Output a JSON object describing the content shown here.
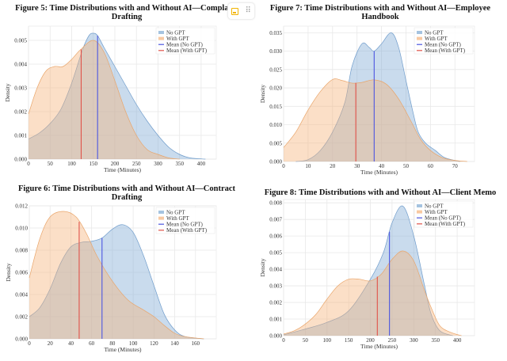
{
  "colors": {
    "no_gpt_fill": "#7fa9d3",
    "with_gpt_fill": "#f5b27a",
    "mean_no_gpt": "#4b55e0",
    "mean_with_gpt": "#e0524a",
    "grid": "#e8e8e8"
  },
  "toolbar": {
    "icons": [
      "image-icon",
      "drag-handle-icon"
    ]
  },
  "chart_data": [
    {
      "type": "area",
      "title": "Figure 5: Time Distributions with and Without AI—Complaint Drafting",
      "title_lines": [
        "Figure 5: Time Distributions with and Without AI—Complaint",
        "Drafting"
      ],
      "xlabel": "Time (Minutes)",
      "ylabel": "Density",
      "xlim": [
        0,
        435
      ],
      "ylim": [
        0,
        0.0056
      ],
      "xticks": [
        0,
        50,
        100,
        150,
        200,
        250,
        300,
        350,
        400
      ],
      "yticks": [
        0.0,
        0.001,
        0.002,
        0.003,
        0.004,
        0.005
      ],
      "grid": true,
      "legend_placement": "top-right",
      "legend": [
        "No GPT",
        "With GPT",
        "Mean (No GPT)",
        "Mean (With GPT)"
      ],
      "series": [
        {
          "name": "No GPT",
          "x": [
            0,
            25,
            50,
            75,
            100,
            125,
            140,
            150,
            160,
            175,
            200,
            225,
            250,
            275,
            300,
            325,
            350,
            375,
            410
          ],
          "y": [
            0.00085,
            0.0011,
            0.0015,
            0.0021,
            0.0032,
            0.0046,
            0.0052,
            0.0053,
            0.0052,
            0.0047,
            0.0039,
            0.0031,
            0.0023,
            0.0016,
            0.001,
            0.0005,
            0.0002,
            5e-05,
            0
          ]
        },
        {
          "name": "With GPT",
          "x": [
            0,
            20,
            40,
            60,
            80,
            100,
            120,
            150,
            175,
            200,
            225,
            250,
            275,
            300,
            325,
            350
          ],
          "y": [
            0.0019,
            0.003,
            0.0037,
            0.0039,
            0.0039,
            0.0042,
            0.0046,
            0.005,
            0.0045,
            0.0033,
            0.002,
            0.001,
            0.0004,
            0.0002,
            5e-05,
            0
          ]
        }
      ],
      "means": {
        "No GPT": 160,
        "With GPT": 122
      }
    },
    {
      "type": "area",
      "title": "Figure 7: Time Distributions with and Without AI—Employee Handbook",
      "title_lines": [
        "Figure 7: Time Distributions with and Without AI—Employee",
        "Handbook"
      ],
      "xlabel": "Time (Minutes)",
      "ylabel": "Density",
      "xlim": [
        0,
        78
      ],
      "ylim": [
        0,
        0.0368
      ],
      "xticks": [
        0,
        10,
        20,
        30,
        40,
        50,
        60,
        70
      ],
      "yticks": [
        0.0,
        0.005,
        0.01,
        0.015,
        0.02,
        0.025,
        0.03,
        0.035
      ],
      "grid": true,
      "legend_placement": "top-right",
      "legend": [
        "No GPT",
        "With GPT",
        "Mean (No GPT)",
        "Mean (With GPT)"
      ],
      "series": [
        {
          "name": "No GPT",
          "x": [
            5,
            10,
            15,
            20,
            25,
            28,
            32,
            35,
            37,
            40,
            44,
            47,
            50,
            53,
            55,
            58,
            62,
            66,
            72
          ],
          "y": [
            0,
            0.0005,
            0.003,
            0.008,
            0.016,
            0.026,
            0.032,
            0.031,
            0.03,
            0.032,
            0.035,
            0.031,
            0.022,
            0.013,
            0.008,
            0.005,
            0.003,
            0.001,
            0
          ]
        },
        {
          "name": "With GPT",
          "x": [
            0,
            5,
            10,
            15,
            20,
            24,
            28,
            32,
            37,
            42,
            47,
            52,
            56,
            60,
            65,
            70,
            75
          ],
          "y": [
            0.0038,
            0.008,
            0.014,
            0.019,
            0.0223,
            0.022,
            0.0213,
            0.0215,
            0.0222,
            0.021,
            0.017,
            0.011,
            0.006,
            0.003,
            0.001,
            0.0003,
            0
          ]
        }
      ],
      "means": {
        "No GPT": 37,
        "With GPT": 29.5
      }
    },
    {
      "type": "area",
      "title": "Figure 6: Time Distributions with and Without AI—Contract Drafting",
      "title_lines": [
        "Figure 6: Time Distributions with and Without AI—Contract",
        "Drafting"
      ],
      "xlabel": "Time (Minutes)",
      "ylabel": "Density",
      "xlim": [
        0,
        180
      ],
      "ylim": [
        0,
        0.012
      ],
      "xticks": [
        0,
        20,
        40,
        60,
        80,
        100,
        120,
        140,
        160
      ],
      "yticks": [
        0.0,
        0.002,
        0.004,
        0.006,
        0.008,
        0.01,
        0.012
      ],
      "grid": true,
      "legend_placement": "top-right",
      "legend": [
        "No GPT",
        "With GPT",
        "Mean (No GPT)",
        "Mean (With GPT)"
      ],
      "series": [
        {
          "name": "No GPT",
          "x": [
            0,
            10,
            20,
            30,
            40,
            50,
            60,
            70,
            80,
            90,
            100,
            110,
            120,
            130,
            140,
            150,
            168
          ],
          "y": [
            0.002,
            0.0028,
            0.0045,
            0.0068,
            0.0083,
            0.0087,
            0.0088,
            0.0091,
            0.0099,
            0.0103,
            0.0096,
            0.0075,
            0.0048,
            0.0022,
            0.0008,
            0.0002,
            0
          ]
        },
        {
          "name": "With GPT",
          "x": [
            0,
            10,
            20,
            33,
            45,
            55,
            65,
            80,
            95,
            110,
            120,
            130,
            140,
            150,
            168
          ],
          "y": [
            0.0055,
            0.009,
            0.011,
            0.0115,
            0.011,
            0.0095,
            0.0075,
            0.0052,
            0.0035,
            0.0026,
            0.002,
            0.0012,
            0.0005,
            0.0002,
            0
          ]
        }
      ],
      "means": {
        "No GPT": 70,
        "With GPT": 48
      }
    },
    {
      "type": "area",
      "title": "Figure 8: Time Distributions with and Without AI—Client Memo",
      "title_lines": [
        "Figure 8: Time Distributions with and Without AI—Client Memo"
      ],
      "xlabel": "Time (Minutes)",
      "ylabel": "Density",
      "xlim": [
        0,
        440
      ],
      "ylim": [
        0,
        0.0082
      ],
      "xticks": [
        0,
        50,
        100,
        150,
        200,
        250,
        300,
        350,
        400
      ],
      "yticks": [
        0.0,
        0.001,
        0.002,
        0.003,
        0.004,
        0.005,
        0.006,
        0.007,
        0.008
      ],
      "grid": true,
      "legend_placement": "top-right",
      "legend": [
        "No GPT",
        "With GPT",
        "Mean (No GPT)",
        "Mean (With GPT)"
      ],
      "series": [
        {
          "name": "No GPT",
          "x": [
            0,
            50,
            100,
            150,
            200,
            230,
            250,
            275,
            300,
            325,
            340,
            360,
            390
          ],
          "y": [
            5e-05,
            0.0004,
            0.0008,
            0.0015,
            0.0034,
            0.005,
            0.0068,
            0.0078,
            0.006,
            0.003,
            0.0013,
            0.0003,
            0
          ]
        },
        {
          "name": "With GPT",
          "x": [
            0,
            25,
            50,
            75,
            100,
            125,
            150,
            175,
            200,
            225,
            250,
            275,
            300,
            325,
            340,
            360,
            385,
            410
          ],
          "y": [
            0.0001,
            0.0003,
            0.0007,
            0.0013,
            0.0022,
            0.003,
            0.0034,
            0.0034,
            0.0033,
            0.0037,
            0.0046,
            0.0051,
            0.0045,
            0.0027,
            0.0017,
            0.0006,
            0.0002,
            0
          ]
        }
      ],
      "means": {
        "No GPT": 244,
        "With GPT": 216
      }
    }
  ]
}
